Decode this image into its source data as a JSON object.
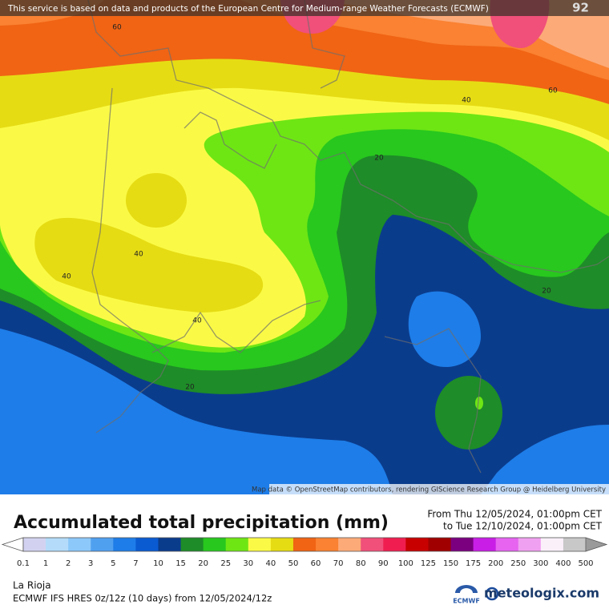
{
  "header": {
    "notice": "This service is based on data and products of the European Centre for Medium-range Weather Forecasts (ECMWF)",
    "number": "92"
  },
  "map": {
    "contour_labels": [
      "60",
      "60",
      "40",
      "20",
      "40",
      "40",
      "40",
      "20",
      "20"
    ],
    "attribution": "Map data © OpenStreetMap contributors, rendering GIScience Research Group @ Heidelberg University"
  },
  "footer": {
    "title": "Accumulated total precipitation (mm)",
    "from": "From Thu 12/05/2024, 01:00pm CET",
    "to": "to Tue 12/10/2024, 01:00pm CET",
    "region": "La Rioja",
    "model": "ECMWF IFS HRES 0z/12z (10 days) from 12/05/2024/12z",
    "ecmwf_logo": "ECMWF",
    "brand": "meteologix.com"
  },
  "legend": {
    "levels": [
      0.1,
      1,
      2,
      3,
      5,
      7,
      10,
      15,
      20,
      25,
      30,
      40,
      50,
      60,
      70,
      80,
      90,
      100,
      125,
      150,
      175,
      200,
      250,
      300,
      400,
      500
    ],
    "colors": [
      "#d2d2f0",
      "#b4dcfa",
      "#8cc8fa",
      "#50a0f0",
      "#1e7de8",
      "#0a5ad2",
      "#0a3c8c",
      "#1e8c28",
      "#28c81e",
      "#6ee614",
      "#fafa46",
      "#e6dc14",
      "#f06414",
      "#fa8232",
      "#fcaa78",
      "#f0507a",
      "#f01e50",
      "#c80000",
      "#a00000",
      "#7a0080",
      "#c81ee6",
      "#e664f0",
      "#f0a0f0",
      "#faf0fa",
      "#c8c8c8"
    ]
  }
}
